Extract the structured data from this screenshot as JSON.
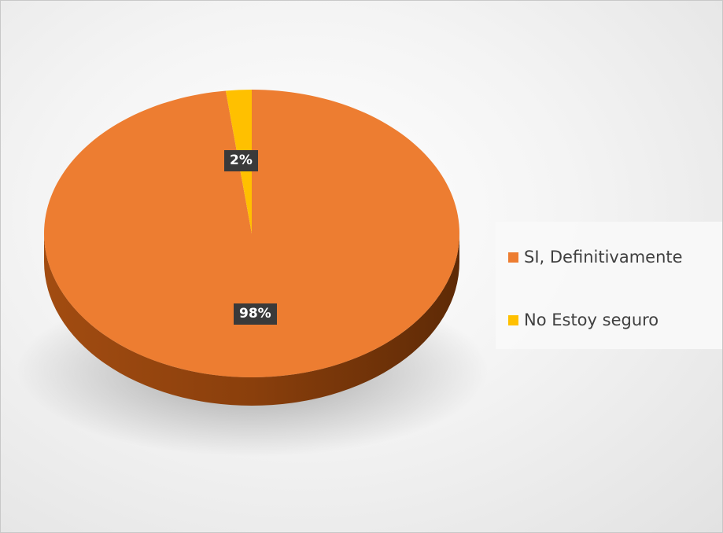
{
  "chart_data": {
    "type": "pie",
    "categories": [
      "SI, Definitivamente",
      "No Estoy seguro"
    ],
    "values": [
      98,
      2
    ],
    "data_labels": [
      "98%",
      "2%"
    ],
    "colors": [
      "#ED7D31",
      "#FFC000"
    ],
    "legend_position": "right",
    "style": "3d"
  }
}
